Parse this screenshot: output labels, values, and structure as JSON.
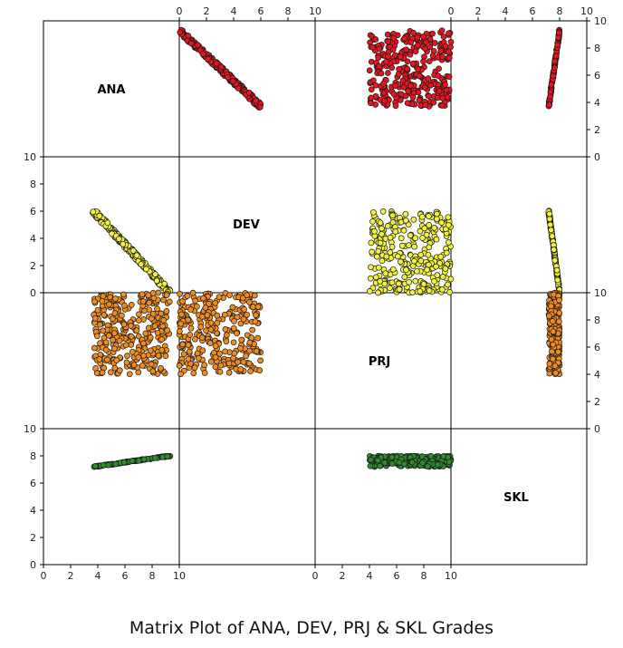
{
  "chart_data": {
    "type": "scatter",
    "title": "Matrix Plot of ANA, DEV, PRJ & SKL Grades",
    "variables": [
      "ANA",
      "DEV",
      "PRJ",
      "SKL"
    ],
    "tick_values": [
      0,
      2,
      4,
      6,
      8,
      10
    ],
    "axis_range": [
      0,
      10
    ],
    "grid": false,
    "point_counts": {
      "ANA-DEV": 240,
      "ANA-PRJ": 320,
      "ANA-SKL": 120,
      "DEV-PRJ": 300,
      "PRJ-SKL": 240
    },
    "colors": {
      "ANA": "#e8141e",
      "DEV": "#f2f23c",
      "PRJ": "#f28c1e",
      "SKL": "#2e8b2e",
      "edge": "#1a1a1a",
      "frame": "#000000"
    },
    "relationships": [
      {
        "x": "DEV",
        "y": "ANA",
        "trend": "linear",
        "x_range": [
          0,
          6
        ],
        "y_at_x_min": 9.3,
        "y_at_x_max": 3.7
      },
      {
        "x": "PRJ",
        "y": "ANA",
        "trend": "uniform",
        "x_range": [
          4,
          10
        ],
        "y_range": [
          3.7,
          9.3
        ]
      },
      {
        "x": "SKL",
        "y": "ANA",
        "trend": "linear",
        "x_range": [
          7.2,
          8.0
        ],
        "y_at_x_min": 3.7,
        "y_at_x_max": 9.3
      },
      {
        "x": "PRJ",
        "y": "DEV",
        "trend": "uniform",
        "x_range": [
          4,
          10
        ],
        "y_range": [
          0,
          6
        ]
      },
      {
        "x": "SKL",
        "y": "DEV",
        "trend": "linear",
        "x_range": [
          7.2,
          8.0
        ],
        "y_at_x_min": 6.0,
        "y_at_x_max": 0.0
      },
      {
        "x": "SKL",
        "y": "PRJ",
        "trend": "uniform",
        "x_range": [
          7.2,
          8.0
        ],
        "y_range": [
          4,
          10
        ]
      }
    ]
  }
}
